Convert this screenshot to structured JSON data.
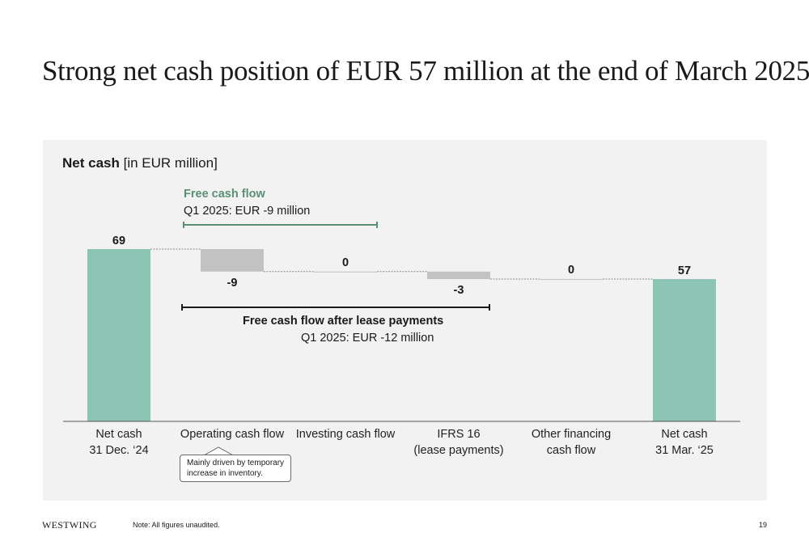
{
  "slide": {
    "title": "Strong net cash position of EUR 57 million at the end of March 2025",
    "chart_title_bold": "Net cash",
    "chart_title_unit": "[in EUR million]",
    "free_cash_flow": {
      "title": "Free cash flow",
      "subtitle": "Q1 2025: EUR -9 million"
    },
    "free_cash_flow_after_lease": {
      "title": "Free cash flow after lease payments",
      "subtitle": "Q1 2025: EUR -12 million"
    },
    "callout": {
      "line1": "Mainly driven by temporary",
      "line2": "increase in inventory."
    },
    "footer": {
      "brand": "WESTWING",
      "note": "Note: All figures unaudited.",
      "page": "19"
    }
  },
  "colors": {
    "total": "#8cc5b4",
    "delta": "#c2c2c2",
    "fcf_accent": "#5a8f76",
    "axis": "#555555"
  },
  "chart_data": {
    "type": "bar",
    "subtype": "waterfall",
    "unit": "EUR million",
    "categories": [
      [
        "Net cash",
        "31 Dec. ‘24"
      ],
      [
        "Operating cash flow"
      ],
      [
        "Investing cash flow"
      ],
      [
        "IFRS 16",
        "(lease payments)"
      ],
      [
        "Other financing",
        "cash flow"
      ],
      [
        "Net cash",
        "31 Mar. ‘25"
      ]
    ],
    "values": [
      69,
      -9,
      0,
      -3,
      0,
      57
    ],
    "value_labels": [
      "69",
      "-9",
      "0",
      "-3",
      "0",
      "57"
    ],
    "kinds": [
      "total",
      "delta",
      "delta",
      "delta",
      "delta",
      "total"
    ],
    "ylim": [
      0,
      80
    ],
    "grid": false,
    "legend": "none"
  }
}
